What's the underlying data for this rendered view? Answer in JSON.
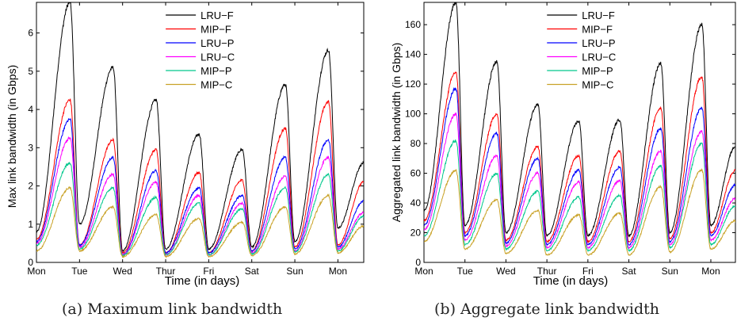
{
  "captions": [
    "(a) Maximum link bandwidth",
    "(b) Aggregate link bandwidth"
  ],
  "chart_data": [
    {
      "type": "line",
      "xlabel": "Time (in days)",
      "ylabel": "Max link bandwidth (in Gbps)",
      "x_tick_labels": [
        "Mon",
        "Tue",
        "Wed",
        "Thur",
        "Fri",
        "Sat",
        "Sun",
        "Mon"
      ],
      "x_tick_days": [
        0,
        1,
        2,
        3,
        4,
        5,
        6,
        7
      ],
      "xlim_days": [
        0,
        7.6
      ],
      "ylim": [
        0,
        6.8
      ],
      "y_ticks": [
        0,
        1,
        2,
        3,
        4,
        5,
        6
      ],
      "legend_position": "top-center",
      "peak_day_offsets": [
        0.78,
        1.78,
        2.78,
        3.78,
        4.78,
        5.78,
        6.78
      ],
      "series": [
        {
          "name": "LRU−F",
          "color": "#000000",
          "trough_values": [
            0.8,
            1.0,
            0.3,
            0.35,
            0.35,
            0.4,
            0.55,
            0.9
          ],
          "peak_values": [
            6.8,
            5.1,
            4.25,
            3.35,
            2.95,
            4.65,
            5.55
          ],
          "end_value": 2.6
        },
        {
          "name": "MIP−F",
          "color": "#ff0000",
          "trough_values": [
            0.6,
            0.45,
            0.25,
            0.25,
            0.25,
            0.3,
            0.4,
            0.45
          ],
          "peak_values": [
            4.25,
            3.2,
            2.95,
            2.35,
            2.15,
            3.5,
            4.2
          ],
          "end_value": 2.1
        },
        {
          "name": "LRU−P",
          "color": "#0000ff",
          "trough_values": [
            0.55,
            0.45,
            0.2,
            0.25,
            0.25,
            0.3,
            0.35,
            0.4
          ],
          "peak_values": [
            3.75,
            2.75,
            2.4,
            1.95,
            1.75,
            2.75,
            3.2
          ],
          "end_value": 1.6
        },
        {
          "name": "LRU−C",
          "color": "#ff00ff",
          "trough_values": [
            0.5,
            0.4,
            0.2,
            0.2,
            0.2,
            0.25,
            0.3,
            0.35
          ],
          "peak_values": [
            3.25,
            2.3,
            2.1,
            1.75,
            1.55,
            2.25,
            2.75
          ],
          "end_value": 1.3
        },
        {
          "name": "MIP−P",
          "color": "#00c78c",
          "trough_values": [
            0.45,
            0.35,
            0.18,
            0.2,
            0.2,
            0.22,
            0.28,
            0.3
          ],
          "peak_values": [
            2.6,
            1.95,
            1.7,
            1.55,
            1.4,
            1.95,
            2.3
          ],
          "end_value": 1.2
        },
        {
          "name": "MIP−C",
          "color": "#c9a227",
          "trough_values": [
            0.3,
            0.3,
            0.15,
            0.15,
            0.15,
            0.18,
            0.22,
            0.25
          ],
          "peak_values": [
            1.95,
            1.45,
            1.25,
            1.15,
            1.05,
            1.45,
            1.75
          ],
          "end_value": 0.95
        }
      ]
    },
    {
      "type": "line",
      "xlabel": "Time (in days)",
      "ylabel": "Aggregated link bandwidth (in Gbps)",
      "x_tick_labels": [
        "Mon",
        "Tue",
        "Wed",
        "Thur",
        "Fri",
        "Sat",
        "Sun",
        "Mon"
      ],
      "x_tick_days": [
        0,
        1,
        2,
        3,
        4,
        5,
        6,
        7
      ],
      "xlim_days": [
        0,
        7.6
      ],
      "ylim": [
        0,
        175
      ],
      "y_ticks": [
        0,
        20,
        40,
        60,
        80,
        100,
        120,
        140,
        160
      ],
      "legend_position": "top-center",
      "peak_day_offsets": [
        0.78,
        1.78,
        2.78,
        3.78,
        4.78,
        5.78,
        6.78
      ],
      "series": [
        {
          "name": "LRU−F",
          "color": "#000000",
          "trough_values": [
            35,
            25,
            20,
            18,
            18,
            18,
            20,
            25
          ],
          "peak_values": [
            175,
            135,
            106,
            95,
            96,
            134,
            160
          ],
          "end_value": 78
        },
        {
          "name": "MIP−F",
          "color": "#ff0000",
          "trough_values": [
            28,
            20,
            15,
            14,
            14,
            14,
            16,
            20
          ],
          "peak_values": [
            128,
            100,
            78,
            72,
            75,
            104,
            125
          ],
          "end_value": 62
        },
        {
          "name": "LRU−P",
          "color": "#0000ff",
          "trough_values": [
            25,
            18,
            13,
            12,
            12,
            12,
            14,
            18
          ],
          "peak_values": [
            117,
            87,
            70,
            62,
            64,
            90,
            104
          ],
          "end_value": 52
        },
        {
          "name": "LRU−C",
          "color": "#ff00ff",
          "trough_values": [
            22,
            15,
            11,
            10,
            10,
            10,
            12,
            15
          ],
          "peak_values": [
            100,
            72,
            60,
            54,
            55,
            75,
            88
          ],
          "end_value": 43
        },
        {
          "name": "MIP−P",
          "color": "#00c78c",
          "trough_values": [
            18,
            12,
            9,
            8,
            8,
            8,
            10,
            12
          ],
          "peak_values": [
            82,
            60,
            48,
            44,
            45,
            65,
            80
          ],
          "end_value": 38
        },
        {
          "name": "MIP−C",
          "color": "#c9a227",
          "trough_values": [
            14,
            9,
            6,
            5,
            5,
            5,
            7,
            9
          ],
          "peak_values": [
            62,
            42,
            35,
            32,
            33,
            51,
            62
          ],
          "end_value": 28
        }
      ]
    }
  ]
}
